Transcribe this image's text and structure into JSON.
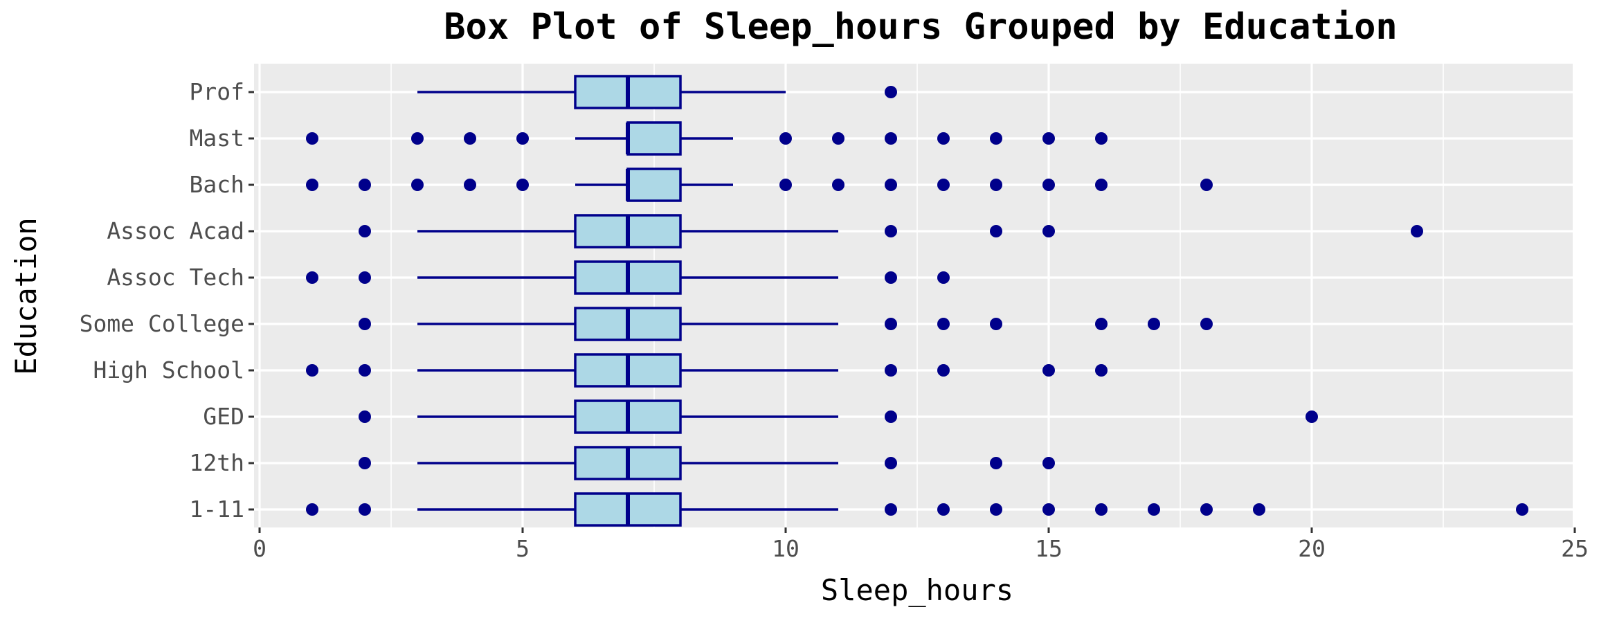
{
  "chart_data": {
    "type": "boxplot",
    "orientation": "horizontal",
    "title": "Box Plot of Sleep_hours Grouped by Education",
    "xlabel": "Sleep_hours",
    "ylabel": "Education",
    "xlim": [
      0,
      25
    ],
    "xticks": [
      0,
      5,
      10,
      15,
      20,
      25
    ],
    "grid": true,
    "legend": "none",
    "categories": [
      "Prof",
      "Mast",
      "Bach",
      "Assoc Acad",
      "Assoc Tech",
      "Some College",
      "High School",
      "GED",
      "12th",
      "1-11"
    ],
    "boxes": [
      {
        "category": "Prof",
        "whisker_low": 3,
        "q1": 6,
        "median": 7,
        "q3": 8,
        "whisker_high": 10,
        "outliers": [
          12
        ]
      },
      {
        "category": "Mast",
        "whisker_low": 6,
        "q1": 7,
        "median": 7,
        "q3": 8,
        "whisker_high": 9,
        "outliers": [
          1,
          3,
          4,
          5,
          10,
          11,
          12,
          13,
          14,
          15,
          16
        ]
      },
      {
        "category": "Bach",
        "whisker_low": 6,
        "q1": 7,
        "median": 7,
        "q3": 8,
        "whisker_high": 9,
        "outliers": [
          1,
          2,
          3,
          4,
          5,
          10,
          11,
          12,
          13,
          14,
          15,
          16,
          18
        ]
      },
      {
        "category": "Assoc Acad",
        "whisker_low": 3,
        "q1": 6,
        "median": 7,
        "q3": 8,
        "whisker_high": 11,
        "outliers": [
          2,
          12,
          14,
          15,
          22
        ]
      },
      {
        "category": "Assoc Tech",
        "whisker_low": 3,
        "q1": 6,
        "median": 7,
        "q3": 8,
        "whisker_high": 11,
        "outliers": [
          1,
          2,
          12,
          13
        ]
      },
      {
        "category": "Some College",
        "whisker_low": 3,
        "q1": 6,
        "median": 7,
        "q3": 8,
        "whisker_high": 11,
        "outliers": [
          2,
          12,
          13,
          14,
          16,
          17,
          18
        ]
      },
      {
        "category": "High School",
        "whisker_low": 3,
        "q1": 6,
        "median": 7,
        "q3": 8,
        "whisker_high": 11,
        "outliers": [
          1,
          2,
          12,
          13,
          15,
          16
        ]
      },
      {
        "category": "GED",
        "whisker_low": 3,
        "q1": 6,
        "median": 7,
        "q3": 8,
        "whisker_high": 11,
        "outliers": [
          2,
          12,
          20
        ]
      },
      {
        "category": "12th",
        "whisker_low": 3,
        "q1": 6,
        "median": 7,
        "q3": 8,
        "whisker_high": 11,
        "outliers": [
          2,
          12,
          14,
          15
        ]
      },
      {
        "category": "1-11",
        "whisker_low": 3,
        "q1": 6,
        "median": 7,
        "q3": 8,
        "whisker_high": 11,
        "outliers": [
          1,
          2,
          12,
          13,
          14,
          15,
          16,
          17,
          18,
          19,
          24
        ]
      }
    ],
    "colors": {
      "box_fill": "#add8e6",
      "box_line": "#00008b",
      "outlier": "#00008b",
      "panel_background": "#ebebeb",
      "grid_line": "#ffffff",
      "tick_text": "#4d4d4d",
      "title_text": "#000000"
    }
  }
}
